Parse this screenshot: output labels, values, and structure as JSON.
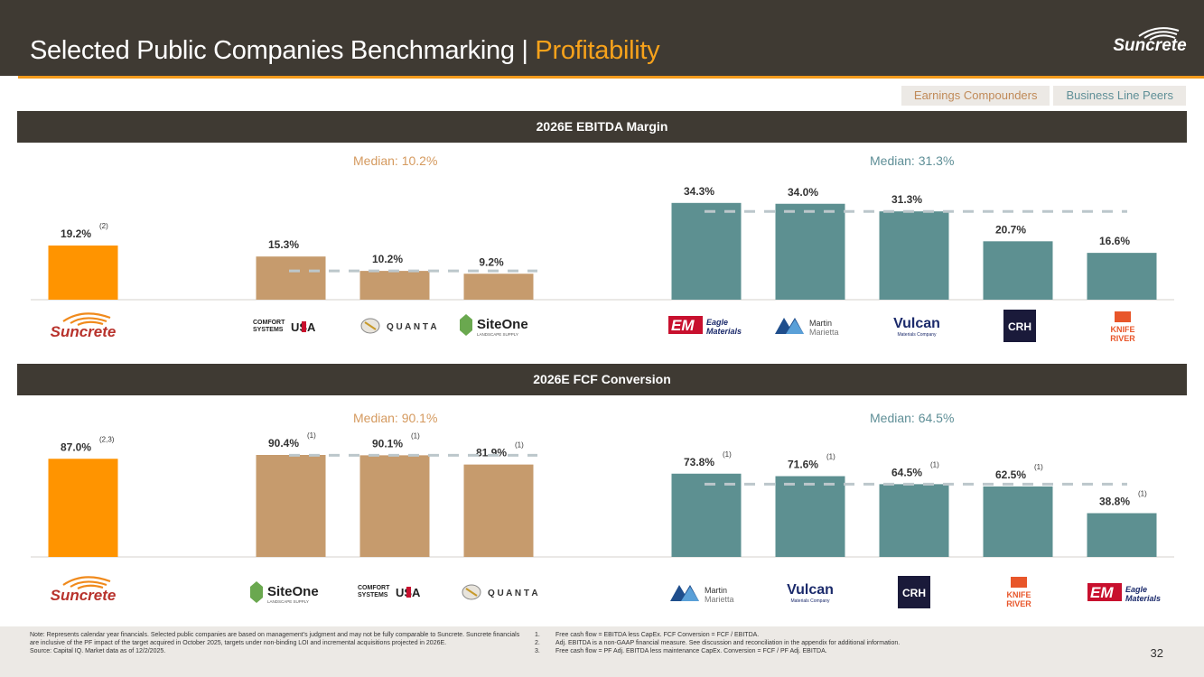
{
  "header": {
    "title_main": "Selected Public Companies Benchmarking | ",
    "title_accent": "Profitability",
    "brand": "Suncrete"
  },
  "tabs": {
    "earnings": "Earnings Compounders",
    "business": "Business Line Peers"
  },
  "colors": {
    "suncrete": "#ff9400",
    "earnings": "#c69b6d",
    "business": "#5d9091",
    "median_line": "#bcc7cb"
  },
  "sections": {
    "ebitda": "2026E EBITDA Margin",
    "fcf": "2026E FCF Conversion"
  },
  "medians": {
    "ebitda_earnings": "Median: 10.2%",
    "ebitda_business": "Median: 31.3%",
    "fcf_earnings": "Median: 90.1%",
    "fcf_business": "Median: 64.5%"
  },
  "chart_data": [
    {
      "type": "bar",
      "title": "2026E EBITDA Margin",
      "ylim": [
        0,
        40
      ],
      "categories": [
        "Suncrete",
        "Comfort Systems USA",
        "Quanta",
        "SiteOne",
        "Eagle Materials",
        "Martin Marietta",
        "Vulcan",
        "CRH",
        "Knife River"
      ],
      "values": [
        19.2,
        15.3,
        10.2,
        9.2,
        34.3,
        34.0,
        31.3,
        20.7,
        16.6
      ],
      "labels": [
        "19.2%",
        "15.3%",
        "10.2%",
        "9.2%",
        "34.3%",
        "34.0%",
        "31.3%",
        "20.7%",
        "16.6%"
      ],
      "footnotes": [
        "(2)",
        "",
        "",
        "",
        "",
        "",
        "",
        "",
        ""
      ],
      "groups": [
        "suncrete",
        "earnings",
        "earnings",
        "earnings",
        "business",
        "business",
        "business",
        "business",
        "business"
      ],
      "medians": {
        "earnings": 10.2,
        "business": 31.3
      }
    },
    {
      "type": "bar",
      "title": "2026E FCF Conversion",
      "ylim": [
        0,
        100
      ],
      "categories": [
        "Suncrete",
        "SiteOne",
        "Comfort Systems USA",
        "Quanta",
        "Martin Marietta",
        "Vulcan",
        "CRH",
        "Knife River",
        "Eagle Materials"
      ],
      "values": [
        87.0,
        90.4,
        90.1,
        81.9,
        73.8,
        71.6,
        64.5,
        62.5,
        38.8
      ],
      "labels": [
        "87.0%",
        "90.4%",
        "90.1%",
        "81.9%",
        "73.8%",
        "71.6%",
        "64.5%",
        "62.5%",
        "38.8%"
      ],
      "footnotes": [
        "(2,3)",
        "(1)",
        "(1)",
        "(1)",
        "(1)",
        "(1)",
        "(1)",
        "(1)",
        "(1)"
      ],
      "groups": [
        "suncrete",
        "earnings",
        "earnings",
        "earnings",
        "business",
        "business",
        "business",
        "business",
        "business"
      ],
      "medians": {
        "earnings": 90.1,
        "business": 64.5
      }
    }
  ],
  "logo_text": {
    "suncrete": "Suncrete",
    "comfort_1": "COMFORT",
    "comfort_2": "SYSTEMS",
    "comfort_3": "USA",
    "quanta": "Q U A N T A",
    "siteone": "SiteOne",
    "siteone_sub": "LANDSCAPE SUPPLY",
    "eagle_1": "Eagle",
    "eagle_2": "Materials",
    "martin_1": "Martin",
    "martin_2": "Marietta",
    "vulcan": "Vulcan",
    "vulcan_sub": "Materials Company",
    "crh": "CRH",
    "knife_1": "KNIFE",
    "knife_2": "RIVER"
  },
  "footer": {
    "note": "Note: Represents calendar year financials. Selected public companies are based on management's judgment and may not be fully comparable to Suncrete. Suncrete financials are inclusive of the PF impact of the target acquired in October 2025, targets under non-binding LOI and incremental acquisitions projected in 2026E.",
    "source": "Source: Capital IQ. Market data as of 12/2/2025.",
    "footnotes": [
      {
        "num": "1.",
        "text": "Free cash flow = EBITDA less CapEx. FCF Conversion = FCF / EBITDA."
      },
      {
        "num": "2.",
        "text": "Adj. EBITDA is a non-GAAP financial measure. See discussion and reconciliation in the appendix for additional information."
      },
      {
        "num": "3.",
        "text": "Free cash flow = PF Adj. EBITDA less maintenance CapEx. Conversion = FCF / PF Adj. EBITDA."
      }
    ],
    "page": "32"
  }
}
